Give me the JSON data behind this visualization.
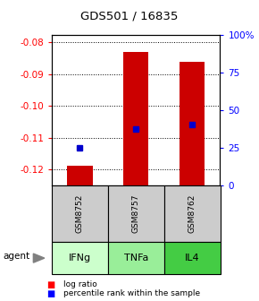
{
  "title": "GDS501 / 16835",
  "samples": [
    "GSM8752",
    "GSM8757",
    "GSM8762"
  ],
  "agents": [
    "IFNg",
    "TNFa",
    "IL4"
  ],
  "agent_colors": [
    "#ccffcc",
    "#99ee99",
    "#44cc44"
  ],
  "log_ratios": [
    -0.119,
    -0.083,
    -0.086
  ],
  "percentile_ranks": [
    25,
    37,
    40
  ],
  "ylim_left": [
    -0.125,
    -0.0775
  ],
  "ylim_right": [
    0,
    100
  ],
  "yticks_left": [
    -0.12,
    -0.11,
    -0.1,
    -0.09,
    -0.08
  ],
  "yticks_right": [
    0,
    25,
    50,
    75,
    100
  ],
  "ytick_labels_right": [
    "0",
    "25",
    "50",
    "75",
    "100%"
  ],
  "bar_color": "#cc0000",
  "dot_color": "#0000cc",
  "sample_box_color": "#cccccc",
  "grid_color": "black"
}
